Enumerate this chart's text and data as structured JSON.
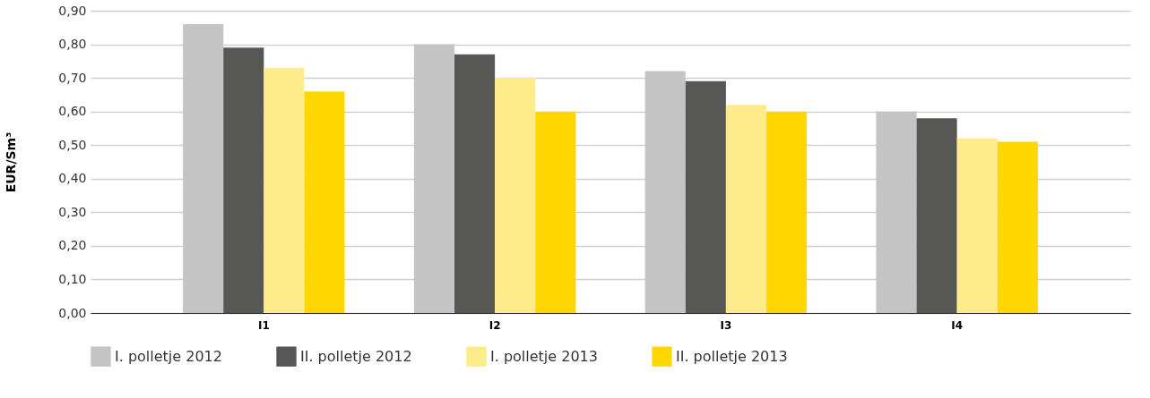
{
  "chart_data": {
    "type": "bar",
    "ylabel": "EUR/Sm³",
    "categories": [
      "I1",
      "I2",
      "I3",
      "I4"
    ],
    "series": [
      {
        "name": "I. polletje 2012",
        "color": "#c4c4c4",
        "values": [
          0.86,
          0.8,
          0.72,
          0.6
        ]
      },
      {
        "name": "II. polletje 2012",
        "color": "#575755",
        "values": [
          0.79,
          0.77,
          0.69,
          0.58
        ]
      },
      {
        "name": "I. polletje 2013",
        "color": "#feeb8a",
        "values": [
          0.73,
          0.7,
          0.62,
          0.52
        ]
      },
      {
        "name": "II. polletje 2013",
        "color": "#fed700",
        "values": [
          0.66,
          0.6,
          0.6,
          0.51
        ]
      }
    ],
    "ylim": [
      0,
      0.9
    ],
    "yticks": [
      {
        "value": 0,
        "label": "0,00"
      },
      {
        "value": 0.1,
        "label": "0,10"
      },
      {
        "value": 0.2,
        "label": "0,20"
      },
      {
        "value": 0.3,
        "label": "0,30"
      },
      {
        "value": 0.4,
        "label": "0,40"
      },
      {
        "value": 0.5,
        "label": "0,50"
      },
      {
        "value": 0.6,
        "label": "0,60"
      },
      {
        "value": 0.7,
        "label": "0,70"
      },
      {
        "value": 0.8,
        "label": "0,80"
      },
      {
        "value": 0.9,
        "label": "0,90"
      }
    ],
    "grid": "y",
    "legend": "bottom"
  }
}
